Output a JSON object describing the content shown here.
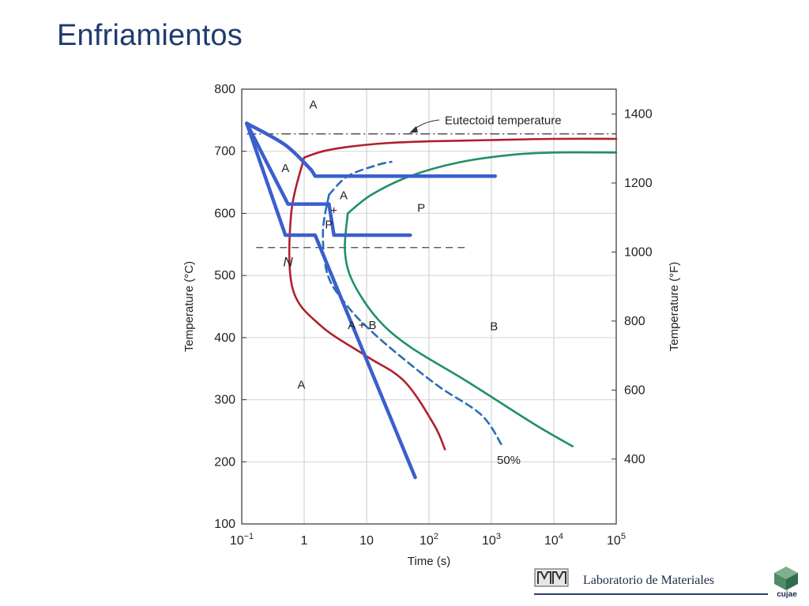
{
  "page": {
    "title": "Enfriamientos"
  },
  "footer": {
    "lab_name": "Laboratorio de Materiales",
    "emblem_label": "cujae",
    "logo_icon": "lab-logo-icon",
    "emblem_icon": "cube-emblem-icon"
  },
  "chart_data": {
    "type": "line",
    "x_scale": "log",
    "xlim": [
      0.1,
      100000
    ],
    "ylim": [
      100,
      800
    ],
    "xlabel": "Time (s)",
    "ylabel": "Temperature (°C)",
    "y2label": "Temperature (°F)",
    "x_ticks": [
      {
        "value": 0.1,
        "base": "10",
        "exp": "−1"
      },
      {
        "value": 1,
        "base": "1",
        "exp": ""
      },
      {
        "value": 10,
        "base": "10",
        "exp": ""
      },
      {
        "value": 100,
        "base": "10",
        "exp": "2"
      },
      {
        "value": 1000,
        "base": "10",
        "exp": "3"
      },
      {
        "value": 10000,
        "base": "10",
        "exp": "4"
      },
      {
        "value": 100000,
        "base": "10",
        "exp": "5"
      }
    ],
    "y_ticks": [
      "100",
      "200",
      "300",
      "400",
      "500",
      "600",
      "700",
      "800"
    ],
    "y2_ticks": [
      "400",
      "600",
      "800",
      "1000",
      "1200",
      "1400"
    ],
    "grid": true,
    "colors": {
      "start_curve": "#b0202e",
      "half_curve": "#2a6db5",
      "finish_curve": "#1f8f6a",
      "cooling_paths": "#3a5fcd",
      "reference_lines": "#444444"
    },
    "series": [
      {
        "key": "start",
        "x": [
          1,
          2,
          5,
          20,
          100,
          1000,
          10000,
          100000
        ],
        "y": [
          690,
          700,
          707,
          713,
          716,
          718,
          720,
          720
        ]
      },
      {
        "key": "start_lower",
        "x": [
          1,
          0.62,
          0.65,
          1.8,
          10,
          40,
          120,
          180
        ],
        "y": [
          690,
          600,
          480,
          420,
          370,
          330,
          260,
          220
        ]
      },
      {
        "key": "half",
        "x": [
          2.5,
          5,
          15,
          25
        ],
        "y": [
          630,
          660,
          678,
          683
        ]
      },
      {
        "key": "half_lower",
        "x": [
          2.5,
          2,
          2.4,
          5,
          12,
          40,
          150,
          700,
          1500
        ],
        "y": [
          630,
          570,
          500,
          450,
          410,
          365,
          320,
          275,
          225
        ]
      },
      {
        "key": "finish",
        "x": [
          5,
          12,
          50,
          300,
          2000,
          10000,
          100000
        ],
        "y": [
          600,
          630,
          660,
          682,
          694,
          698,
          698
        ]
      },
      {
        "key": "finish_lower",
        "x": [
          5,
          4.5,
          6,
          15,
          50,
          400,
          5000,
          20000
        ],
        "y": [
          600,
          540,
          490,
          430,
          385,
          330,
          260,
          225
        ]
      }
    ],
    "reference_lines": [
      {
        "key": "eutectoid",
        "y": 728,
        "x_from": 0.12,
        "x_to": 100000,
        "style": "dash-dot"
      },
      {
        "key": "nose",
        "y": 545,
        "x_from": 0.17,
        "x_to": 400,
        "style": "dashed"
      }
    ],
    "cooling_paths": [
      {
        "x": [
          0.12,
          0.5,
          1.3,
          1.5,
          1150
        ],
        "y": [
          745,
          710,
          670,
          660,
          660
        ]
      },
      {
        "x": [
          0.12,
          0.55,
          2.5,
          3,
          6,
          50
        ],
        "y": [
          745,
          615,
          615,
          565,
          565,
          565
        ]
      },
      {
        "x": [
          0.12,
          0.5,
          1.5,
          60
        ],
        "y": [
          745,
          565,
          565,
          175
        ]
      }
    ],
    "annotations": [
      {
        "text": "A",
        "x": 1.4,
        "y": 775
      },
      {
        "text": "Eutectoid temperature",
        "x": 150,
        "y": 750
      },
      {
        "text": "A",
        "x": 0.5,
        "y": 673
      },
      {
        "text": "A",
        "x": 4.3,
        "y": 629
      },
      {
        "text": "+",
        "x": 3.0,
        "y": 605
      },
      {
        "text": "P",
        "x": 2.5,
        "y": 582
      },
      {
        "text": "P",
        "x": 75,
        "y": 609
      },
      {
        "text": "N",
        "x": 0.55,
        "y": 521
      },
      {
        "text": "A + B",
        "x": 8.5,
        "y": 420
      },
      {
        "text": "B",
        "x": 1100,
        "y": 418
      },
      {
        "text": "A",
        "x": 0.9,
        "y": 324
      },
      {
        "text": "50%",
        "x": 1900,
        "y": 203
      }
    ]
  }
}
